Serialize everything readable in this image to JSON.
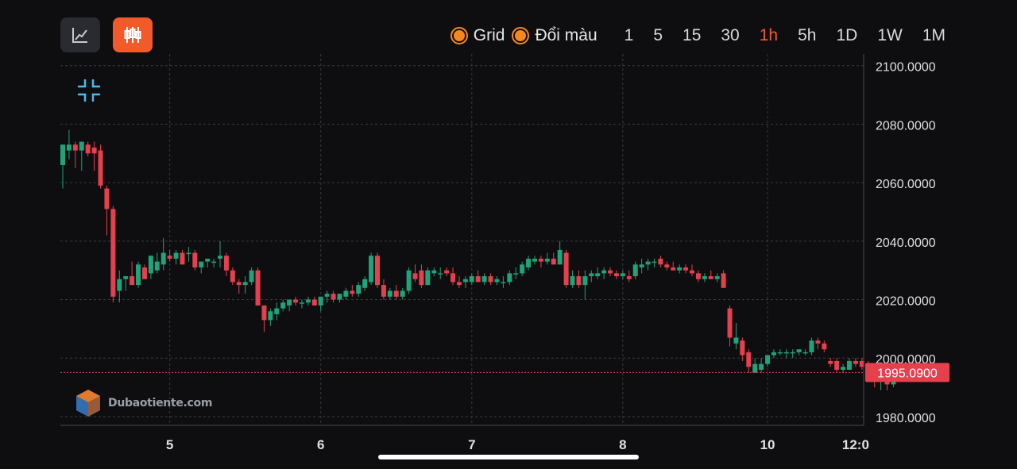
{
  "toolbar": {
    "grid_label": "Grid",
    "color_label": "Đổi màu",
    "timeframes": [
      "1",
      "5",
      "15",
      "30",
      "1h",
      "5h",
      "1D",
      "1W",
      "1M"
    ],
    "active_timeframe": "1h",
    "accent_color": "#f25a2a",
    "toggle_color": "#f5871f"
  },
  "buttons": {
    "line_chart": "line-chart-icon",
    "candlestick_chart": "candlestick-icon",
    "collapse": "collapse-icon"
  },
  "watermark": {
    "text": "Dubaotiente.com"
  },
  "chart_data": {
    "type": "candlestick",
    "up_color": "#1fa37a",
    "down_color": "#e5404d",
    "grid": true,
    "ylim": [
      1977,
      2104
    ],
    "y_ticks": [
      1980,
      2000,
      2020,
      2040,
      2060,
      2080,
      2100
    ],
    "y_tick_labels": [
      "1980.0000",
      "2000.0000",
      "2020.0000",
      "2040.0000",
      "2060.0000",
      "2080.0000",
      "2100.0000"
    ],
    "x_ticks": [
      {
        "label": "5",
        "i": 17
      },
      {
        "label": "6",
        "i": 41
      },
      {
        "label": "7",
        "i": 65
      },
      {
        "label": "8",
        "i": 89
      },
      {
        "label": "10",
        "i": 112
      },
      {
        "label": "12:0",
        "i": 126
      }
    ],
    "current_price": 1995.09,
    "current_price_label": "1995.0900",
    "candles": [
      [
        2066,
        2073,
        2058,
        2073
      ],
      [
        2071,
        2078,
        2068,
        2073
      ],
      [
        2073,
        2074,
        2065,
        2071
      ],
      [
        2071,
        2073,
        2064,
        2074
      ],
      [
        2073,
        2074,
        2069,
        2070
      ],
      [
        2072,
        2074,
        2064,
        2070
      ],
      [
        2071,
        2073,
        2058,
        2059
      ],
      [
        2058,
        2059,
        2042,
        2051
      ],
      [
        2051,
        2052,
        2019,
        2021
      ],
      [
        2023,
        2030,
        2019,
        2027
      ],
      [
        2027,
        2028,
        2023,
        2028
      ],
      [
        2028,
        2033,
        2025,
        2025
      ],
      [
        2025,
        2033,
        2024,
        2032
      ],
      [
        2031,
        2032,
        2027,
        2027
      ],
      [
        2029,
        2035,
        2027,
        2035
      ],
      [
        2030,
        2036,
        2029,
        2033
      ],
      [
        2032,
        2041,
        2030,
        2036
      ],
      [
        2035,
        2037,
        2033,
        2034
      ],
      [
        2034,
        2037,
        2032,
        2036
      ],
      [
        2036,
        2037,
        2032,
        2032
      ],
      [
        2036,
        2038,
        2033,
        2036
      ],
      [
        2036,
        2037,
        2030,
        2031
      ],
      [
        2031,
        2033,
        2029,
        2033
      ],
      [
        2033,
        2034,
        2031,
        2034
      ],
      [
        2033,
        2034,
        2031,
        2033
      ],
      [
        2034,
        2040,
        2031,
        2035
      ],
      [
        2035,
        2036,
        2028,
        2030
      ],
      [
        2030,
        2031,
        2025,
        2026
      ],
      [
        2026,
        2027,
        2022,
        2025
      ],
      [
        2025,
        2028,
        2022,
        2026
      ],
      [
        2026,
        2031,
        2025,
        2030
      ],
      [
        2030,
        2031,
        2018,
        2018
      ],
      [
        2018,
        2018,
        2009,
        2013
      ],
      [
        2013,
        2017,
        2011,
        2016
      ],
      [
        2015,
        2019,
        2013,
        2017
      ],
      [
        2017,
        2020,
        2016,
        2019
      ],
      [
        2018,
        2020,
        2016,
        2020
      ],
      [
        2020,
        2021,
        2018,
        2019
      ],
      [
        2019,
        2020,
        2017,
        2019
      ],
      [
        2019,
        2021,
        2018,
        2020
      ],
      [
        2020,
        2021,
        2018,
        2018
      ],
      [
        2018,
        2021,
        2016,
        2021
      ],
      [
        2021,
        2023,
        2019,
        2022
      ],
      [
        2022,
        2023,
        2019,
        2020
      ],
      [
        2020,
        2022,
        2019,
        2022
      ],
      [
        2021,
        2024,
        2020,
        2023
      ],
      [
        2023,
        2025,
        2021,
        2022
      ],
      [
        2022,
        2026,
        2021,
        2025
      ],
      [
        2024,
        2028,
        2023,
        2027
      ],
      [
        2026,
        2036,
        2025,
        2035
      ],
      [
        2035,
        2036,
        2024,
        2025
      ],
      [
        2025,
        2027,
        2020,
        2021
      ],
      [
        2021,
        2024,
        2020,
        2023
      ],
      [
        2023,
        2025,
        2020,
        2021
      ],
      [
        2021,
        2024,
        2020,
        2023
      ],
      [
        2023,
        2031,
        2022,
        2030
      ],
      [
        2029,
        2032,
        2026,
        2027
      ],
      [
        2030,
        2032,
        2024,
        2025
      ],
      [
        2025,
        2031,
        2025,
        2030
      ],
      [
        2029,
        2031,
        2028,
        2030
      ],
      [
        2029,
        2031,
        2027,
        2029
      ],
      [
        2030,
        2031,
        2028,
        2029
      ],
      [
        2029,
        2031,
        2025,
        2026
      ],
      [
        2026,
        2028,
        2024,
        2025
      ],
      [
        2026,
        2028,
        2024,
        2027
      ],
      [
        2026,
        2029,
        2025,
        2028
      ],
      [
        2028,
        2030,
        2026,
        2026
      ],
      [
        2026,
        2029,
        2025,
        2028
      ],
      [
        2028,
        2029,
        2025,
        2026
      ],
      [
        2026,
        2028,
        2025,
        2027
      ],
      [
        2026,
        2028,
        2024,
        2026
      ],
      [
        2026,
        2030,
        2025,
        2029
      ],
      [
        2029,
        2031,
        2027,
        2029
      ],
      [
        2029,
        2033,
        2028,
        2032
      ],
      [
        2031,
        2035,
        2030,
        2034
      ],
      [
        2033,
        2035,
        2032,
        2034
      ],
      [
        2034,
        2035,
        2031,
        2033
      ],
      [
        2033,
        2036,
        2032,
        2034
      ],
      [
        2034,
        2036,
        2032,
        2032
      ],
      [
        2032,
        2040,
        2032,
        2037
      ],
      [
        2036,
        2037,
        2024,
        2025
      ],
      [
        2025,
        2030,
        2024,
        2028
      ],
      [
        2028,
        2030,
        2024,
        2025
      ],
      [
        2025,
        2030,
        2020,
        2028
      ],
      [
        2028,
        2030,
        2026,
        2029
      ],
      [
        2028,
        2031,
        2027,
        2029
      ],
      [
        2029,
        2031,
        2027,
        2030
      ],
      [
        2030,
        2031,
        2028,
        2029
      ],
      [
        2029,
        2030,
        2027,
        2028
      ],
      [
        2028,
        2030,
        2027,
        2029
      ],
      [
        2028,
        2030,
        2026,
        2027
      ],
      [
        2028,
        2033,
        2027,
        2032
      ],
      [
        2031,
        2034,
        2029,
        2032
      ],
      [
        2032,
        2034,
        2030,
        2033
      ],
      [
        2033,
        2034,
        2031,
        2033
      ],
      [
        2034,
        2035,
        2031,
        2032
      ],
      [
        2032,
        2033,
        2030,
        2031
      ],
      [
        2031,
        2033,
        2030,
        2030
      ],
      [
        2030,
        2032,
        2029,
        2031
      ],
      [
        2031,
        2032,
        2029,
        2030
      ],
      [
        2030,
        2032,
        2028,
        2029
      ],
      [
        2029,
        2030,
        2026,
        2027
      ],
      [
        2027,
        2029,
        2026,
        2028
      ],
      [
        2028,
        2030,
        2027,
        2027
      ],
      [
        2027,
        2029,
        2026,
        2028
      ],
      [
        2029,
        2030,
        2025,
        2024
      ],
      [
        2017,
        2018,
        2004,
        2007
      ],
      [
        2005,
        2012,
        2003,
        2007
      ],
      [
        2006,
        2007,
        1999,
        2001
      ],
      [
        2002,
        2003,
        1995,
        1997
      ],
      [
        1995,
        2000,
        1995,
        1998
      ],
      [
        1996,
        2000,
        1995,
        1998
      ],
      [
        1998,
        2001,
        1997,
        2001
      ],
      [
        2001,
        2003,
        2000,
        2002
      ],
      [
        2002,
        2003,
        2001,
        2002
      ],
      [
        2002,
        2003,
        2000,
        2002
      ],
      [
        2002,
        2003,
        2000,
        2002
      ],
      [
        2002,
        2003,
        2001,
        2003
      ],
      [
        2002,
        2003,
        2001,
        2002
      ],
      [
        2002,
        2007,
        2001,
        2006
      ],
      [
        2006,
        2007,
        2003,
        2005
      ],
      [
        2005,
        2006,
        2002,
        2003
      ],
      [
        1999,
        2000,
        1997,
        1998
      ],
      [
        1999,
        2000,
        1995,
        1996
      ],
      [
        1996,
        1998,
        1995,
        1997
      ],
      [
        1996,
        2000,
        1996,
        1999
      ],
      [
        1999,
        2000,
        1997,
        1998
      ],
      [
        1999,
        2000,
        1996,
        1997
      ],
      [
        1997,
        1999,
        1994,
        1995
      ],
      [
        1995,
        1996,
        1990,
        1992
      ],
      [
        1992,
        1995,
        1989,
        1993
      ],
      [
        1994,
        1995,
        1989,
        1991
      ],
      [
        1991,
        1995,
        1990,
        1995
      ],
      [
        1995,
        1996,
        1993,
        1995
      ]
    ]
  }
}
